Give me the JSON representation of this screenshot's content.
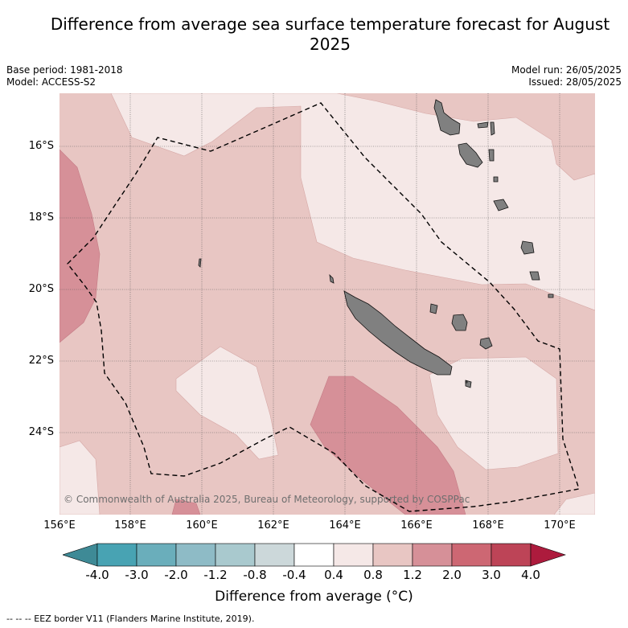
{
  "title": "Difference from average sea surface temperature forecast for August 2025",
  "meta": {
    "base_period": "Base period: 1981-2018",
    "model": "Model: ACCESS-S2",
    "model_run": "Model run: 26/05/2025",
    "issued": "Issued: 28/05/2025"
  },
  "map": {
    "latitude_labels": [
      "16°S",
      "18°S",
      "20°S",
      "22°S",
      "24°S"
    ],
    "longitude_labels": [
      "156°E",
      "158°E",
      "160°E",
      "162°E",
      "164°E",
      "166°E",
      "168°E",
      "170°E"
    ],
    "land_color": "#808080",
    "eez_style": "dashed black line",
    "credit": "© Commonwealth of Australia 2025, Bureau of Meteorology, supported by COSPPac"
  },
  "colorbar": {
    "ticks": [
      "-4.0",
      "-3.0",
      "-2.0",
      "-1.2",
      "-0.8",
      "-0.4",
      "0.4",
      "0.8",
      "1.2",
      "2.0",
      "3.0",
      "4.0"
    ],
    "colors": [
      "#3e8a96",
      "#48a3b3",
      "#6aaebb",
      "#8ebbc6",
      "#a9c9ce",
      "#ccd8da",
      "#ffffff",
      "#f5e8e7",
      "#e8c6c3",
      "#d69098",
      "#cd6773",
      "#bd4457",
      "#ad1b3d"
    ],
    "title": "Difference from average (°C)"
  },
  "footnote": "--  --  -- EEZ border V11 (Flanders Marine Institute, 2019)."
}
